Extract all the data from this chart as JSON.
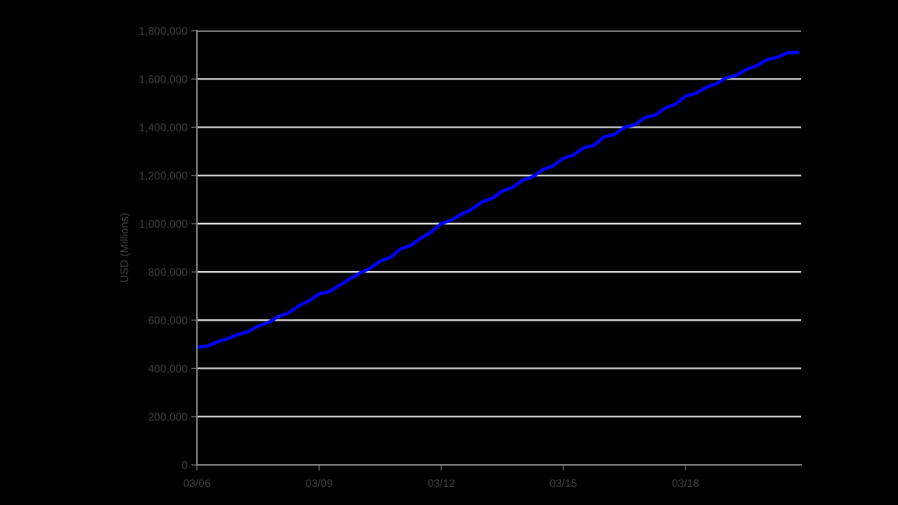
{
  "chart_data": {
    "type": "line",
    "ylabel": "USD (Millions)",
    "x": [
      "2006-03",
      "2006-06",
      "2006-09",
      "2006-12",
      "2007-03",
      "2007-06",
      "2007-09",
      "2007-12",
      "2008-03",
      "2008-06",
      "2008-09",
      "2008-12",
      "2009-03",
      "2009-06",
      "2009-09",
      "2009-12",
      "2010-03",
      "2010-06",
      "2010-09",
      "2010-12",
      "2011-03",
      "2011-06",
      "2011-09",
      "2011-12",
      "2012-03",
      "2012-06",
      "2012-09",
      "2012-12",
      "2013-03",
      "2013-06",
      "2013-09",
      "2013-12",
      "2014-03",
      "2014-06",
      "2014-09",
      "2014-12",
      "2015-03",
      "2015-06",
      "2015-09",
      "2015-12",
      "2016-03",
      "2016-06",
      "2016-09",
      "2016-12",
      "2017-03",
      "2017-06",
      "2017-09",
      "2017-12",
      "2018-03",
      "2018-06",
      "2018-09",
      "2018-12",
      "2019-03",
      "2019-06",
      "2019-09",
      "2019-12",
      "2020-03",
      "2020-06",
      "2020-09",
      "2020-12"
    ],
    "series": [
      {
        "color": "#0000ff",
        "values": [
          487000,
          492000,
          510000,
          523000,
          540000,
          552000,
          575000,
          590000,
          615000,
          630000,
          660000,
          680000,
          709000,
          718000,
          745000,
          770000,
          795000,
          815000,
          845000,
          860000,
          895000,
          910000,
          940000,
          965000,
          1000000,
          1015000,
          1040000,
          1060000,
          1090000,
          1105000,
          1135000,
          1150000,
          1180000,
          1195000,
          1225000,
          1240000,
          1271000,
          1285000,
          1315000,
          1325000,
          1360000,
          1370000,
          1400000,
          1410000,
          1440000,
          1450000,
          1480000,
          1495000,
          1529000,
          1540000,
          1565000,
          1580000,
          1605000,
          1615000,
          1640000,
          1655000,
          1680000,
          1690000,
          1708000,
          1710000
        ]
      }
    ],
    "xlim": [
      "2006-03",
      "2021-01"
    ],
    "xticks": [
      {
        "value": "2006-03",
        "label": "03/06"
      },
      {
        "value": "2009-03",
        "label": "03/09"
      },
      {
        "value": "2012-03",
        "label": "03/12"
      },
      {
        "value": "2015-03",
        "label": "03/15"
      },
      {
        "value": "2018-03",
        "label": "03/18"
      }
    ],
    "ylim": [
      0,
      1800000
    ],
    "yticks": [
      {
        "value": 0,
        "label": "0"
      },
      {
        "value": 200000,
        "label": "200,000"
      },
      {
        "value": 400000,
        "label": "400,000"
      },
      {
        "value": 600000,
        "label": "600,000"
      },
      {
        "value": 800000,
        "label": "800,000"
      },
      {
        "value": 1000000,
        "label": "1,000,000"
      },
      {
        "value": 1200000,
        "label": "1,200,000"
      },
      {
        "value": 1400000,
        "label": "1,400,000"
      },
      {
        "value": 1600000,
        "label": "1,600,000"
      },
      {
        "value": 1800000,
        "label": "1,800,000"
      }
    ],
    "grid": "y",
    "marker": "none",
    "line_style": "solid"
  }
}
